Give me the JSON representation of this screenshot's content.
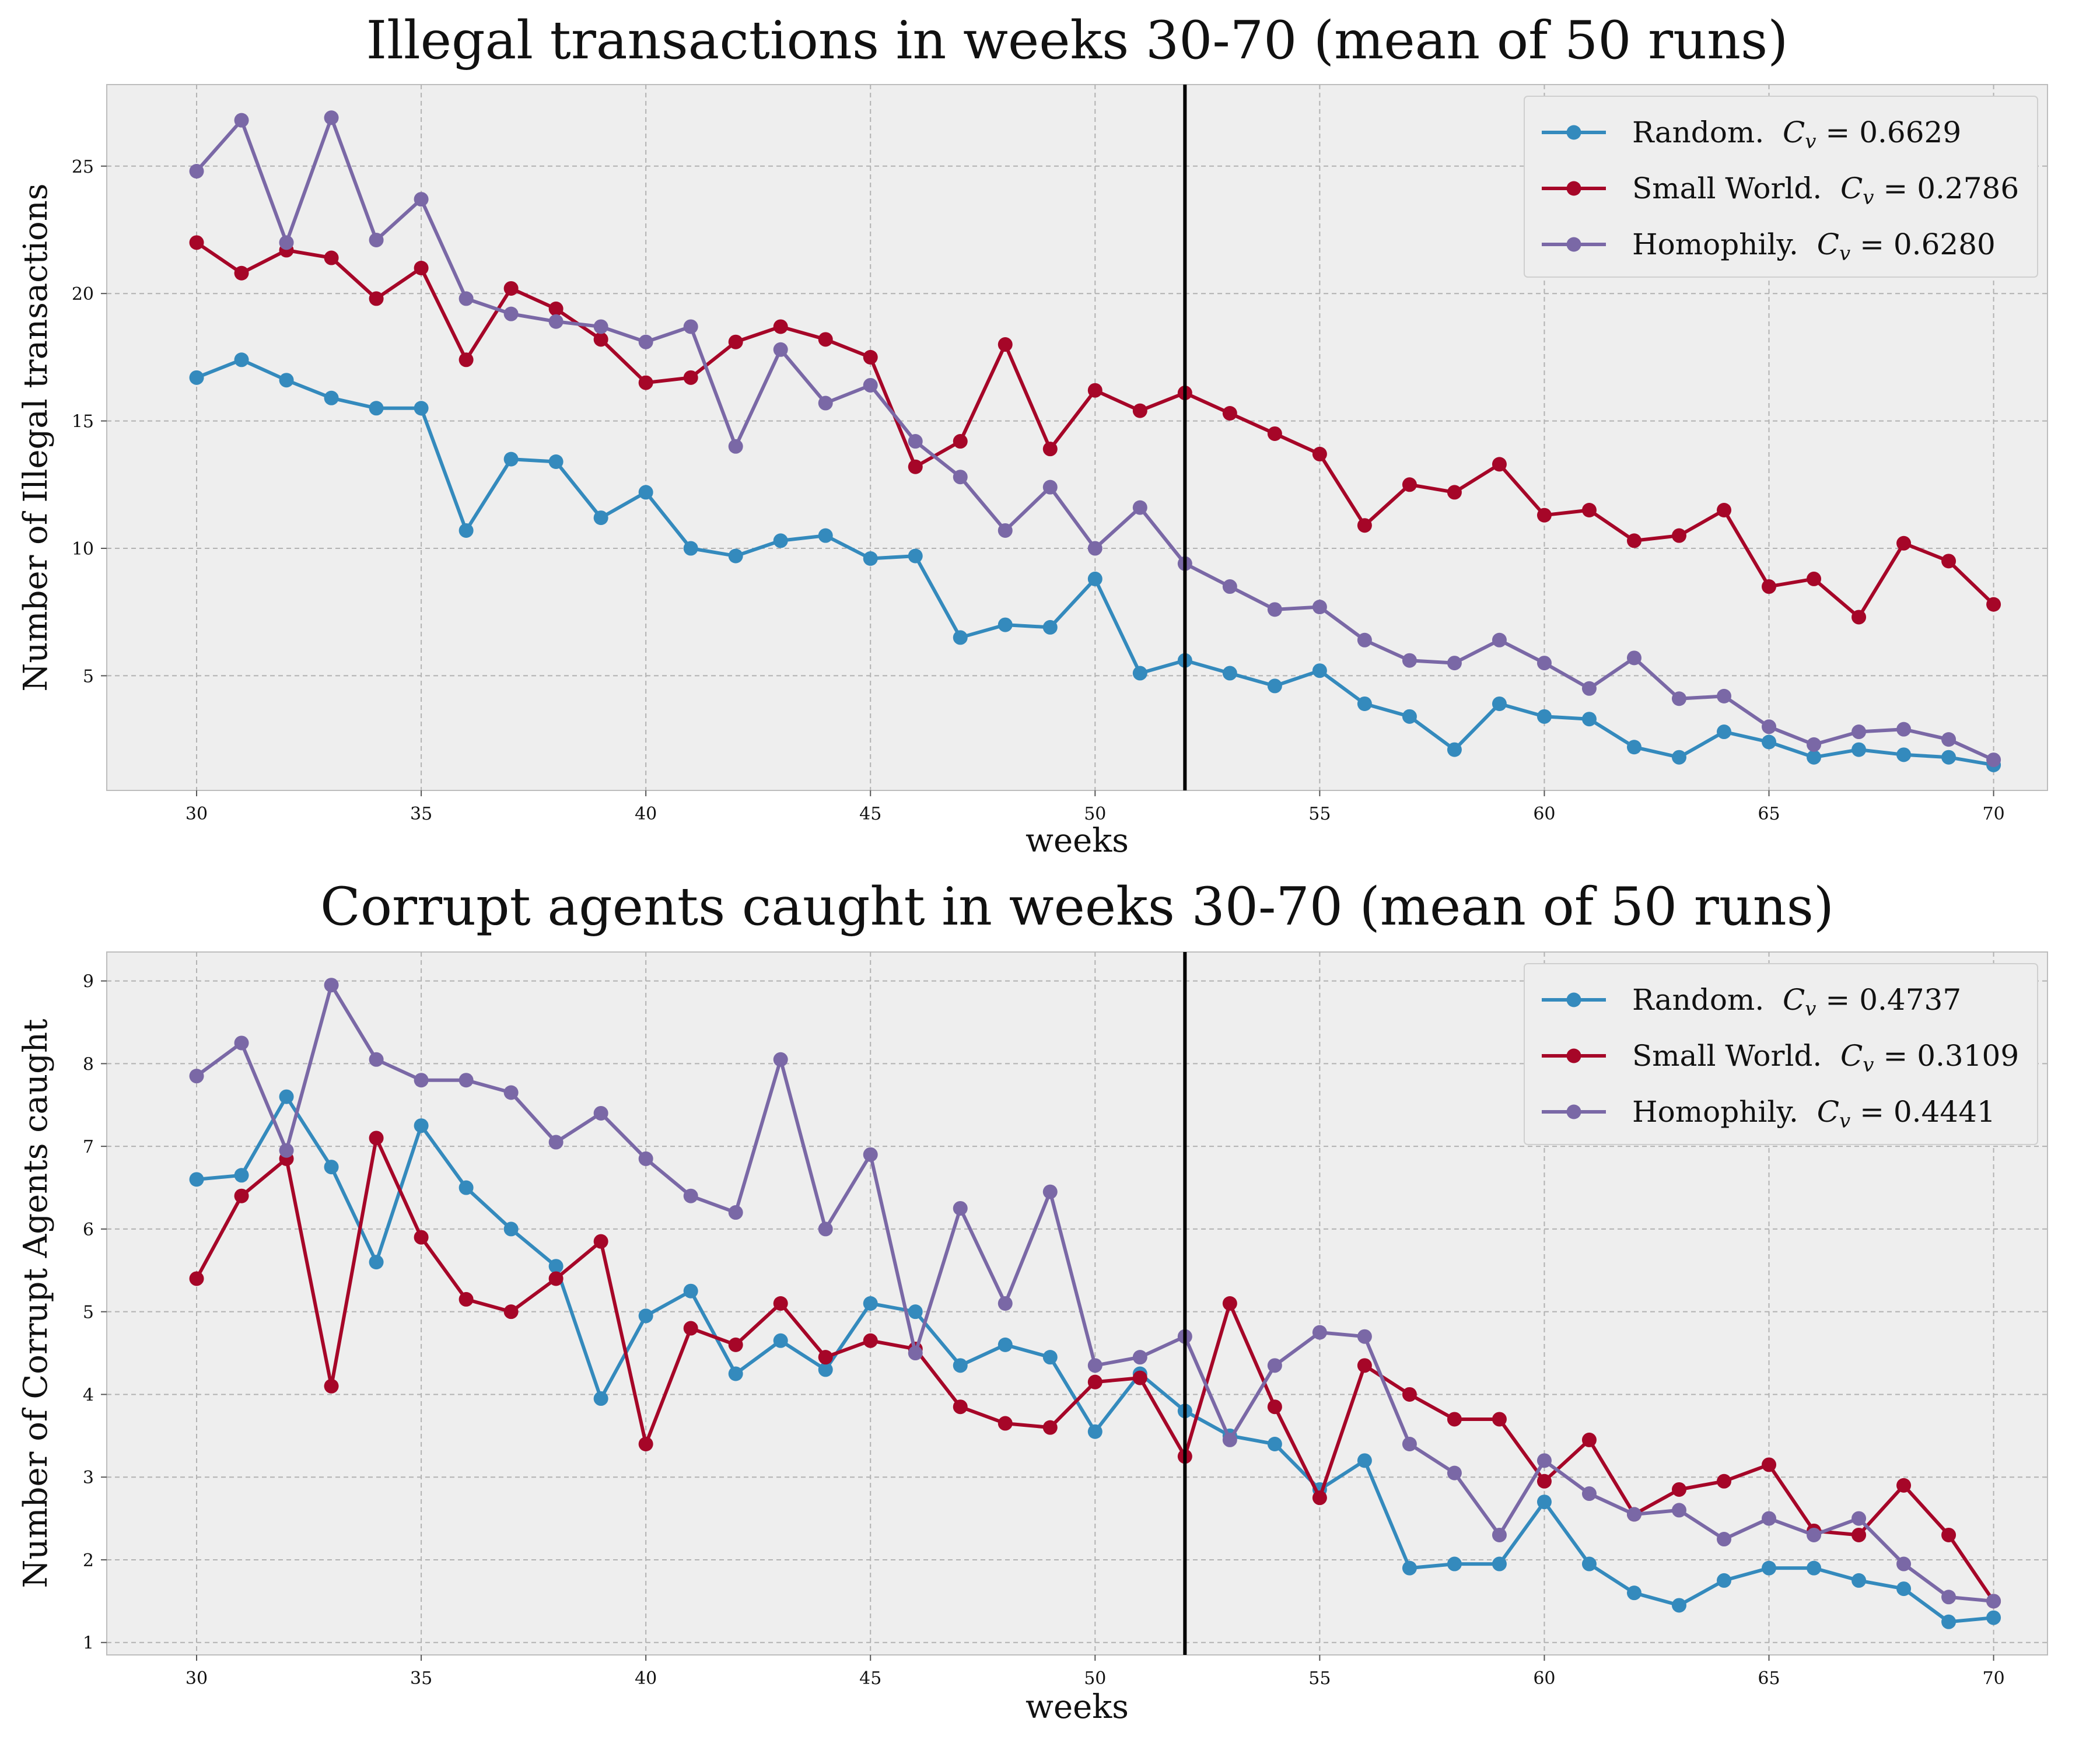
{
  "colors": {
    "random": "#348abd",
    "small_world": "#a60628",
    "homophily": "#7a68a6"
  },
  "chart_data": [
    {
      "type": "line",
      "title": "Illegal transactions in weeks 30-70 (mean of 50 runs)",
      "xlabel": "weeks",
      "ylabel": "Number of Illegal transactions",
      "xlim": [
        28,
        71.2
      ],
      "ylim": [
        0.5,
        28.2
      ],
      "xticks": [
        30,
        35,
        40,
        45,
        50,
        55,
        60,
        65,
        70
      ],
      "yticks": [
        5,
        10,
        15,
        20,
        25
      ],
      "vline": 52,
      "grid": true,
      "legend_position": "top-right",
      "x": [
        30,
        31,
        32,
        33,
        34,
        35,
        36,
        37,
        38,
        39,
        40,
        41,
        42,
        43,
        44,
        45,
        46,
        47,
        48,
        49,
        50,
        51,
        52,
        53,
        54,
        55,
        56,
        57,
        58,
        59,
        60,
        61,
        62,
        63,
        64,
        65,
        66,
        67,
        68,
        69,
        70
      ],
      "series": [
        {
          "key": "random",
          "name": "Random.",
          "cv_value": "0.6629",
          "values": [
            16.7,
            17.4,
            16.6,
            15.9,
            15.5,
            15.5,
            10.7,
            13.5,
            13.4,
            11.2,
            12.2,
            10.0,
            9.7,
            10.3,
            10.5,
            9.6,
            9.7,
            6.5,
            7.0,
            6.9,
            8.8,
            5.1,
            5.6,
            5.1,
            4.6,
            5.2,
            3.9,
            3.4,
            2.1,
            3.9,
            3.4,
            3.3,
            2.2,
            1.8,
            2.8,
            2.4,
            1.8,
            2.1,
            1.9,
            1.8,
            1.5
          ]
        },
        {
          "key": "small_world",
          "name": "Small World.",
          "cv_value": "0.2786",
          "values": [
            22.0,
            20.8,
            21.7,
            21.4,
            19.8,
            21.0,
            17.4,
            20.2,
            19.4,
            18.2,
            16.5,
            16.7,
            18.1,
            18.7,
            18.2,
            17.5,
            13.2,
            14.2,
            18.0,
            13.9,
            16.2,
            15.4,
            16.1,
            15.3,
            14.5,
            13.7,
            10.9,
            12.5,
            12.2,
            13.3,
            11.3,
            11.5,
            10.3,
            10.5,
            11.5,
            8.5,
            8.8,
            7.3,
            10.2,
            9.5,
            7.8
          ]
        },
        {
          "key": "homophily",
          "name": "Homophily.",
          "cv_value": "0.6280",
          "values": [
            24.8,
            26.8,
            22.0,
            26.9,
            22.1,
            23.7,
            19.8,
            19.2,
            18.9,
            18.7,
            18.1,
            18.7,
            14.0,
            17.8,
            15.7,
            16.4,
            14.2,
            12.8,
            10.7,
            12.4,
            10.0,
            11.6,
            9.4,
            8.5,
            7.6,
            7.7,
            6.4,
            5.6,
            5.5,
            6.4,
            5.5,
            4.5,
            5.7,
            4.1,
            4.2,
            3.0,
            2.3,
            2.8,
            2.9,
            2.5,
            1.7
          ]
        }
      ]
    },
    {
      "type": "line",
      "title": "Corrupt agents caught in weeks 30-70 (mean of 50 runs)",
      "xlabel": "weeks",
      "ylabel": "Number of Corrupt Agents caught",
      "xlim": [
        28,
        71.2
      ],
      "ylim": [
        0.85,
        9.35
      ],
      "xticks": [
        30,
        35,
        40,
        45,
        50,
        55,
        60,
        65,
        70
      ],
      "yticks": [
        1,
        2,
        3,
        4,
        5,
        6,
        7,
        8,
        9
      ],
      "vline": 52,
      "grid": true,
      "legend_position": "top-right",
      "x": [
        30,
        31,
        32,
        33,
        34,
        35,
        36,
        37,
        38,
        39,
        40,
        41,
        42,
        43,
        44,
        45,
        46,
        47,
        48,
        49,
        50,
        51,
        52,
        53,
        54,
        55,
        56,
        57,
        58,
        59,
        60,
        61,
        62,
        63,
        64,
        65,
        66,
        67,
        68,
        69,
        70
      ],
      "series": [
        {
          "key": "random",
          "name": "Random.",
          "cv_value": "0.4737",
          "values": [
            6.6,
            6.65,
            7.6,
            6.75,
            5.6,
            7.25,
            6.5,
            6.0,
            5.55,
            3.95,
            4.95,
            5.25,
            4.25,
            4.65,
            4.3,
            5.1,
            5.0,
            4.35,
            4.6,
            4.45,
            3.55,
            4.25,
            3.8,
            3.5,
            3.4,
            2.85,
            3.2,
            1.9,
            1.95,
            1.95,
            2.7,
            1.95,
            1.6,
            1.45,
            1.75,
            1.9,
            1.9,
            1.75,
            1.65,
            1.25,
            1.3
          ]
        },
        {
          "key": "small_world",
          "name": "Small World.",
          "cv_value": "0.3109",
          "values": [
            5.4,
            6.4,
            6.85,
            4.1,
            7.1,
            5.9,
            5.15,
            5.0,
            5.4,
            5.85,
            3.4,
            4.8,
            4.6,
            5.1,
            4.45,
            4.65,
            4.55,
            3.85,
            3.65,
            3.6,
            4.15,
            4.2,
            3.25,
            5.1,
            3.85,
            2.75,
            4.35,
            4.0,
            3.7,
            3.7,
            2.95,
            3.45,
            2.55,
            2.85,
            2.95,
            3.15,
            2.35,
            2.3,
            2.9,
            2.3,
            1.5
          ]
        },
        {
          "key": "homophily",
          "name": "Homophily.",
          "cv_value": "0.4441",
          "values": [
            7.85,
            8.25,
            6.95,
            8.95,
            8.05,
            7.8,
            7.8,
            7.65,
            7.05,
            7.4,
            6.85,
            6.4,
            6.2,
            8.05,
            6.0,
            6.9,
            4.5,
            6.25,
            5.1,
            6.45,
            4.35,
            4.45,
            4.7,
            3.45,
            4.35,
            4.75,
            4.7,
            3.4,
            3.05,
            2.3,
            3.2,
            2.8,
            2.55,
            2.6,
            2.25,
            2.5,
            2.3,
            2.5,
            1.95,
            1.55,
            1.5
          ]
        }
      ]
    }
  ]
}
